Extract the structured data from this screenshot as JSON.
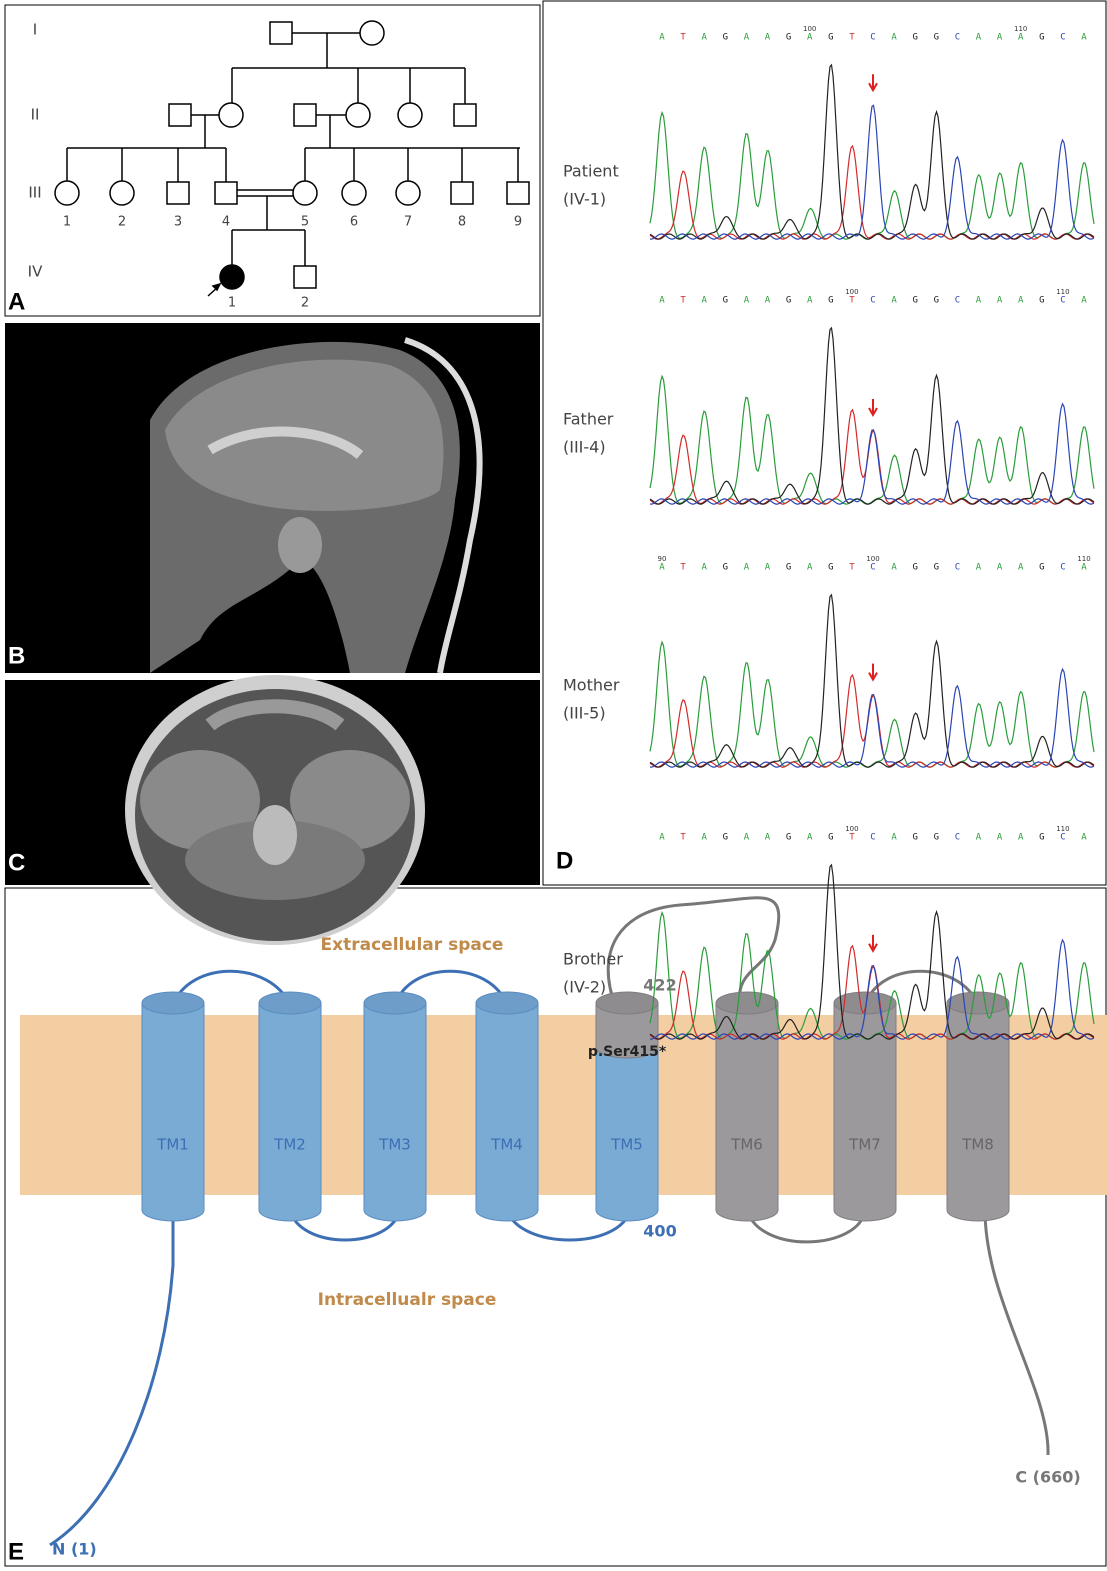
{
  "panel_a": {
    "label": "A",
    "generations": [
      "I",
      "II",
      "III",
      "IV"
    ],
    "generation_iii_numbers": [
      "1",
      "2",
      "3",
      "4",
      "5",
      "6",
      "7",
      "8",
      "9"
    ],
    "generation_iv_numbers": [
      "1",
      "2"
    ]
  },
  "panel_b": {
    "label": "B"
  },
  "panel_c": {
    "label": "C"
  },
  "panel_d": {
    "label": "D",
    "traces": [
      {
        "name": "Patient",
        "id": "(IV-1)",
        "bases": [
          "A",
          "T",
          "A",
          "G",
          "A",
          "A",
          "G",
          "A",
          "G",
          "T",
          "C",
          "A",
          "G",
          "G",
          "C",
          "A",
          "A",
          "A",
          "G",
          "C",
          "A"
        ],
        "position_labels": [
          null,
          null,
          null,
          null,
          null,
          null,
          null,
          "100",
          null,
          null,
          null,
          null,
          null,
          null,
          null,
          null,
          null,
          "110",
          null,
          null,
          null
        ]
      },
      {
        "name": "Father",
        "id": "(III-4)",
        "bases": [
          "A",
          "T",
          "A",
          "G",
          "A",
          "A",
          "G",
          "A",
          "G",
          "T",
          "C",
          "A",
          "G",
          "G",
          "C",
          "A",
          "A",
          "A",
          "G",
          "C",
          "A"
        ],
        "position_labels": [
          null,
          null,
          null,
          null,
          null,
          null,
          null,
          null,
          null,
          "100",
          null,
          null,
          null,
          null,
          null,
          null,
          null,
          null,
          null,
          "110",
          null
        ]
      },
      {
        "name": "Mother",
        "id": "(III-5)",
        "bases": [
          "A",
          "T",
          "A",
          "G",
          "A",
          "A",
          "G",
          "A",
          "G",
          "T",
          "C",
          "A",
          "G",
          "G",
          "C",
          "A",
          "A",
          "A",
          "G",
          "C",
          "A"
        ],
        "position_labels": [
          "90",
          null,
          null,
          null,
          null,
          null,
          null,
          null,
          null,
          null,
          "100",
          null,
          null,
          null,
          null,
          null,
          null,
          null,
          null,
          null,
          "110"
        ]
      },
      {
        "name": "Brother",
        "id": "(IV-2)",
        "bases": [
          "A",
          "T",
          "A",
          "G",
          "A",
          "A",
          "G",
          "A",
          "G",
          "T",
          "C",
          "A",
          "G",
          "G",
          "C",
          "A",
          "A",
          "A",
          "G",
          "C",
          "A"
        ],
        "position_labels": [
          null,
          null,
          null,
          null,
          null,
          null,
          null,
          null,
          null,
          "100",
          null,
          null,
          null,
          null,
          null,
          null,
          null,
          null,
          null,
          "110",
          null
        ]
      }
    ]
  },
  "panel_e": {
    "label": "E",
    "extracellular": "Extracellular space",
    "intracellular": "Intracellualr space",
    "helices": [
      "TM1",
      "TM2",
      "TM3",
      "TM4",
      "TM5",
      "TM6",
      "TM7",
      "TM8"
    ],
    "truncation_end": "422",
    "mutation": "p.Ser415*",
    "tm5_end": "400",
    "n_terminus": "N (1)",
    "c_terminus": "C (660)"
  }
}
